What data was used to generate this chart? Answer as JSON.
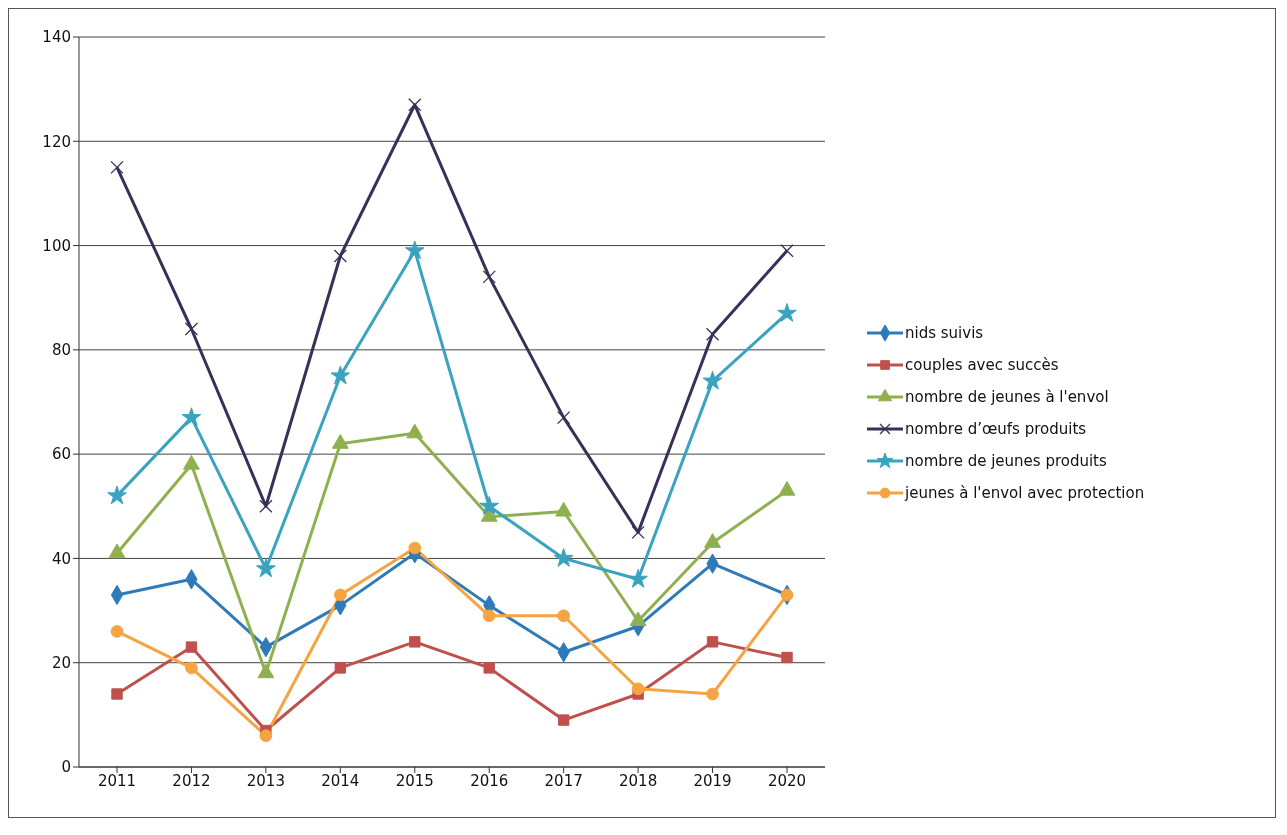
{
  "chart_data": {
    "type": "line",
    "categories": [
      "2011",
      "2012",
      "2013",
      "2014",
      "2015",
      "2016",
      "2017",
      "2018",
      "2019",
      "2020"
    ],
    "series": [
      {
        "name": "nids suivis",
        "color": "#2f7ab8",
        "marker": "diamond",
        "values": [
          33,
          36,
          23,
          31,
          41,
          31,
          22,
          27,
          39,
          33
        ]
      },
      {
        "name": "couples avec succès",
        "color": "#c0504d",
        "marker": "square",
        "values": [
          14,
          23,
          7,
          19,
          24,
          19,
          9,
          14,
          24,
          21
        ]
      },
      {
        "name": "nombre de jeunes à l'envol",
        "color": "#8fb04f",
        "marker": "triangle",
        "values": [
          41,
          58,
          18,
          62,
          64,
          48,
          49,
          28,
          43,
          53
        ]
      },
      {
        "name": "nombre d’œufs produits",
        "color": "#3b2f58",
        "marker": "cross",
        "values": [
          115,
          84,
          50,
          98,
          127,
          94,
          67,
          45,
          83,
          99
        ]
      },
      {
        "name": "nombre de jeunes produits",
        "color": "#3aa3c0",
        "marker": "star",
        "values": [
          52,
          67,
          38,
          75,
          99,
          50,
          40,
          36,
          74,
          87
        ]
      },
      {
        "name": "jeunes à l'envol avec protection",
        "color": "#f5a442",
        "marker": "circle",
        "values": [
          26,
          19,
          6,
          33,
          42,
          29,
          29,
          15,
          14,
          33
        ]
      }
    ],
    "ylim": [
      0,
      140
    ],
    "yticks": [
      0,
      20,
      40,
      60,
      80,
      100,
      120,
      140
    ],
    "grid": "y",
    "legend": "right",
    "line_style": "solid"
  }
}
